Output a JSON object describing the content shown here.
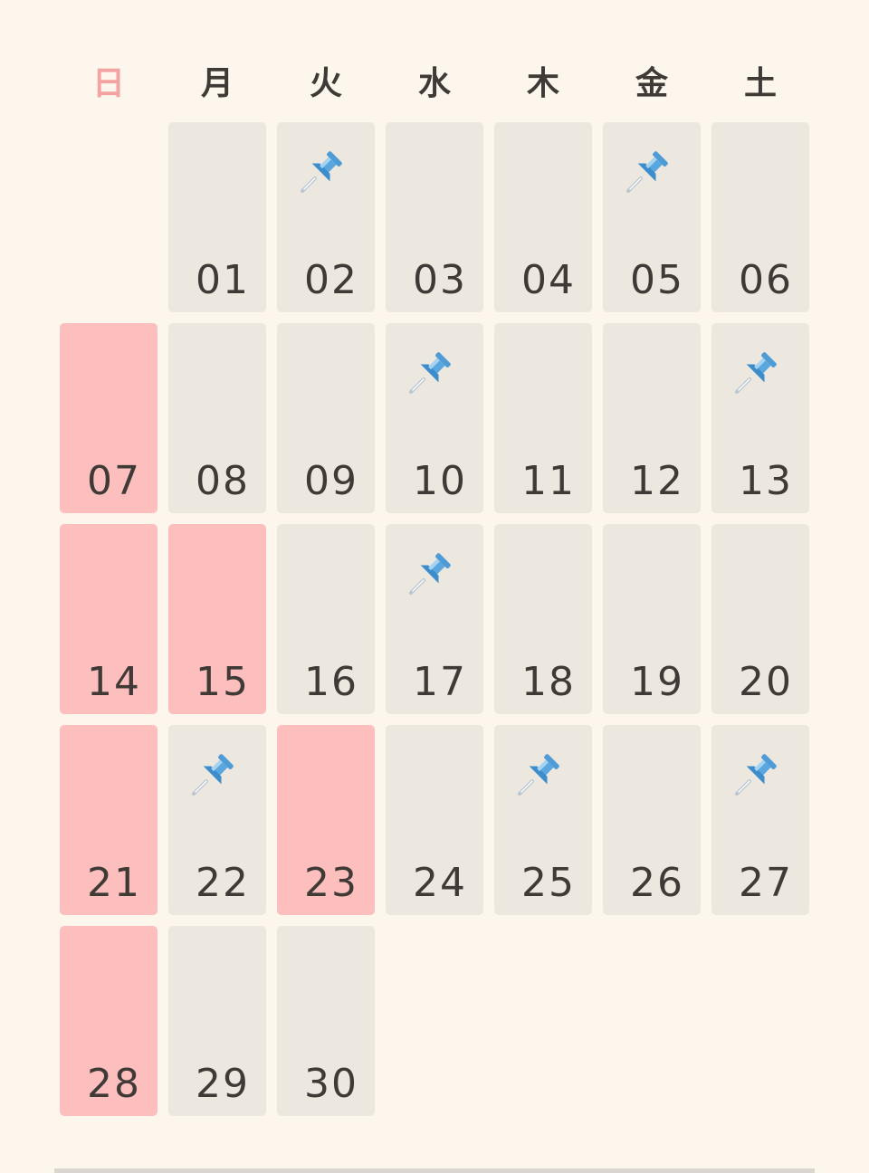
{
  "weekdays": [
    "日",
    "月",
    "火",
    "水",
    "木",
    "金",
    "土"
  ],
  "colors": {
    "background": "#FDF6EC",
    "cell": "#ECE7DF",
    "holiday_cell": "#FDBEBE",
    "sunday_header": "#F4A3A3",
    "text": "#3F3A36",
    "pin": "#5AA7E0"
  },
  "start_offset": 1,
  "days": [
    {
      "label": "01",
      "holiday": false,
      "pin": false
    },
    {
      "label": "02",
      "holiday": false,
      "pin": true
    },
    {
      "label": "03",
      "holiday": false,
      "pin": false
    },
    {
      "label": "04",
      "holiday": false,
      "pin": false
    },
    {
      "label": "05",
      "holiday": false,
      "pin": true
    },
    {
      "label": "06",
      "holiday": false,
      "pin": false
    },
    {
      "label": "07",
      "holiday": true,
      "pin": false
    },
    {
      "label": "08",
      "holiday": false,
      "pin": false
    },
    {
      "label": "09",
      "holiday": false,
      "pin": false
    },
    {
      "label": "10",
      "holiday": false,
      "pin": true
    },
    {
      "label": "11",
      "holiday": false,
      "pin": false
    },
    {
      "label": "12",
      "holiday": false,
      "pin": false
    },
    {
      "label": "13",
      "holiday": false,
      "pin": true
    },
    {
      "label": "14",
      "holiday": true,
      "pin": false
    },
    {
      "label": "15",
      "holiday": true,
      "pin": false
    },
    {
      "label": "16",
      "holiday": false,
      "pin": false
    },
    {
      "label": "17",
      "holiday": false,
      "pin": true
    },
    {
      "label": "18",
      "holiday": false,
      "pin": false
    },
    {
      "label": "19",
      "holiday": false,
      "pin": false
    },
    {
      "label": "20",
      "holiday": false,
      "pin": false
    },
    {
      "label": "21",
      "holiday": true,
      "pin": false
    },
    {
      "label": "22",
      "holiday": false,
      "pin": true
    },
    {
      "label": "23",
      "holiday": true,
      "pin": false
    },
    {
      "label": "24",
      "holiday": false,
      "pin": false
    },
    {
      "label": "25",
      "holiday": false,
      "pin": true
    },
    {
      "label": "26",
      "holiday": false,
      "pin": false
    },
    {
      "label": "27",
      "holiday": false,
      "pin": true
    },
    {
      "label": "28",
      "holiday": true,
      "pin": false
    },
    {
      "label": "29",
      "holiday": false,
      "pin": false
    },
    {
      "label": "30",
      "holiday": false,
      "pin": false
    }
  ]
}
